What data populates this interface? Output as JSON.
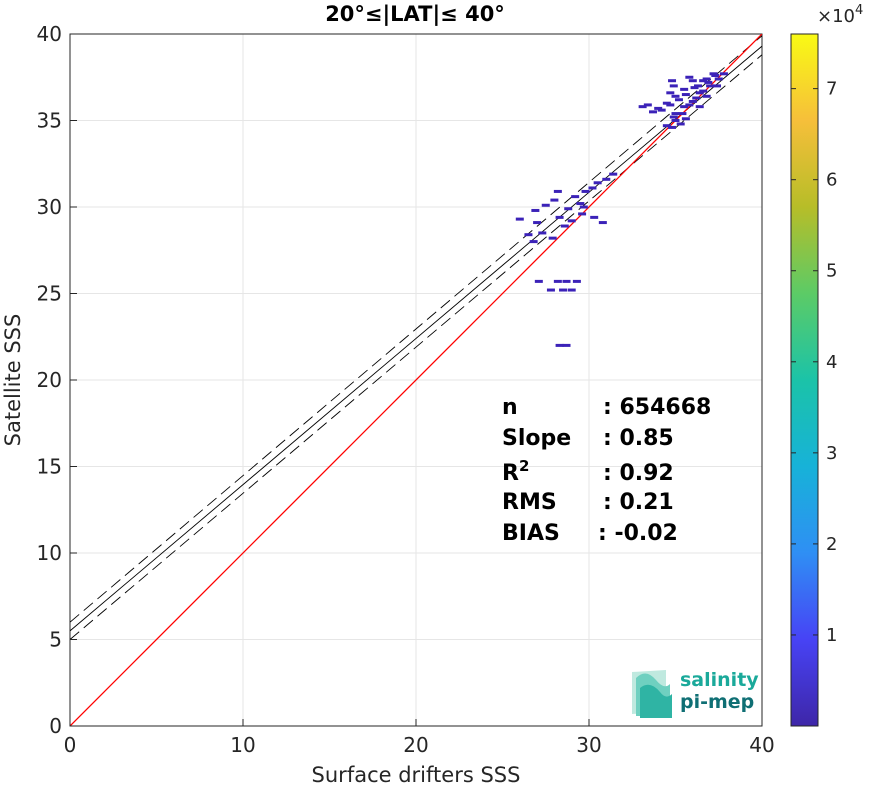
{
  "chart_data": {
    "type": "heatmap",
    "title": "20°≤|LAT|≤ 40°",
    "xlabel": "Surface drifters SSS",
    "ylabel": "Satellite SSS",
    "xlim": [
      0,
      40
    ],
    "ylim": [
      0,
      40
    ],
    "xticks": [
      "0",
      "10",
      "20",
      "30",
      "40"
    ],
    "yticks": [
      "0",
      "5",
      "10",
      "15",
      "20",
      "25",
      "30",
      "35",
      "40"
    ],
    "grid": true,
    "colorbar": {
      "range": [
        0,
        76000
      ],
      "ticks": [
        "1",
        "2",
        "3",
        "4",
        "5",
        "6",
        "7"
      ],
      "tick_values": [
        1,
        2,
        3,
        4,
        5,
        6,
        7
      ],
      "multiplier_base": "×10",
      "multiplier_exp": "4",
      "colors": [
        "#3e26a8",
        "#4743f5",
        "#2f8ff4",
        "#17b2d8",
        "#1bc3a8",
        "#5ccb66",
        "#b7bd28",
        "#f6bf3a",
        "#f9fa14"
      ]
    },
    "one_to_one_line": {
      "from": [
        0,
        0
      ],
      "to": [
        40,
        40
      ],
      "color": "#ff0000"
    },
    "fit_line": {
      "from": [
        0,
        5.5
      ],
      "to": [
        40,
        39.3
      ],
      "color": "#000000"
    },
    "confidence_lines": [
      {
        "from": [
          0,
          6.0
        ],
        "to": [
          40,
          39.9
        ]
      },
      {
        "from": [
          0,
          5.0
        ],
        "to": [
          40,
          38.8
        ]
      }
    ],
    "stats": [
      {
        "label": "n",
        "value": ": 654668"
      },
      {
        "label": "Slope",
        "value": ": 0.85"
      },
      {
        "label": "R",
        "sup": "2",
        "value": ": 0.92"
      },
      {
        "label": "RMS",
        "value": ": 0.21"
      },
      {
        "label": "BIAS",
        "value": ": -0.02"
      }
    ],
    "density_points": [
      [
        34.5,
        34.7
      ],
      [
        35.0,
        35.0
      ],
      [
        35.4,
        35.4
      ],
      [
        35.8,
        35.9
      ],
      [
        36.2,
        36.3
      ],
      [
        36.6,
        36.7
      ],
      [
        37.0,
        37.0
      ],
      [
        35.0,
        35.4
      ],
      [
        35.5,
        35.8
      ],
      [
        36.0,
        36.1
      ],
      [
        36.4,
        36.6
      ],
      [
        36.9,
        37.2
      ],
      [
        37.3,
        37.6
      ],
      [
        34.2,
        35.6
      ],
      [
        34.7,
        35.9
      ],
      [
        35.2,
        36.2
      ],
      [
        35.6,
        36.5
      ],
      [
        36.1,
        36.9
      ],
      [
        36.6,
        37.3
      ],
      [
        37.2,
        37.7
      ],
      [
        33.1,
        35.8
      ],
      [
        33.4,
        35.9
      ],
      [
        34.0,
        35.7
      ],
      [
        34.5,
        36.0
      ],
      [
        35.0,
        36.4
      ],
      [
        35.5,
        36.8
      ],
      [
        36.0,
        37.3
      ],
      [
        36.3,
        37.0
      ],
      [
        36.8,
        37.4
      ],
      [
        37.5,
        37.4
      ],
      [
        37.8,
        37.7
      ],
      [
        35.8,
        37.5
      ],
      [
        34.7,
        36.6
      ],
      [
        36.4,
        35.8
      ],
      [
        35.3,
        34.8
      ],
      [
        34.8,
        34.6
      ],
      [
        34.9,
        35.2
      ],
      [
        35.6,
        35.1
      ],
      [
        36.8,
        36.4
      ],
      [
        37.4,
        37.0
      ],
      [
        34.9,
        37.0
      ],
      [
        34.8,
        37.3
      ],
      [
        33.7,
        35.5
      ],
      [
        26.0,
        29.3
      ],
      [
        26.9,
        29.8
      ],
      [
        27.5,
        30.1
      ],
      [
        28.0,
        30.4
      ],
      [
        28.3,
        29.4
      ],
      [
        28.8,
        29.9
      ],
      [
        29.2,
        30.6
      ],
      [
        29.8,
        30.9
      ],
      [
        30.2,
        31.1
      ],
      [
        30.5,
        31.4
      ],
      [
        31.0,
        31.6
      ],
      [
        31.4,
        31.9
      ],
      [
        29.5,
        30.2
      ],
      [
        26.5,
        28.4
      ],
      [
        27.3,
        28.5
      ],
      [
        27.9,
        28.2
      ],
      [
        28.6,
        28.9
      ],
      [
        29.6,
        29.6
      ],
      [
        30.3,
        29.4
      ],
      [
        30.8,
        29.1
      ],
      [
        27.0,
        29.1
      ],
      [
        29.0,
        29.2
      ],
      [
        28.2,
        30.9
      ],
      [
        29.7,
        30.0
      ],
      [
        26.8,
        28.0
      ],
      [
        27.1,
        25.7
      ],
      [
        28.2,
        25.7
      ],
      [
        28.7,
        25.7
      ],
      [
        29.3,
        25.7
      ],
      [
        27.8,
        25.2
      ],
      [
        28.5,
        25.2
      ],
      [
        29.0,
        25.2
      ],
      [
        28.3,
        22.0
      ],
      [
        28.7,
        22.0
      ]
    ]
  },
  "logo": {
    "line1": "salinity",
    "line2": "pi-mep",
    "color1": "#1aa99a",
    "color2": "#0f6f74"
  }
}
